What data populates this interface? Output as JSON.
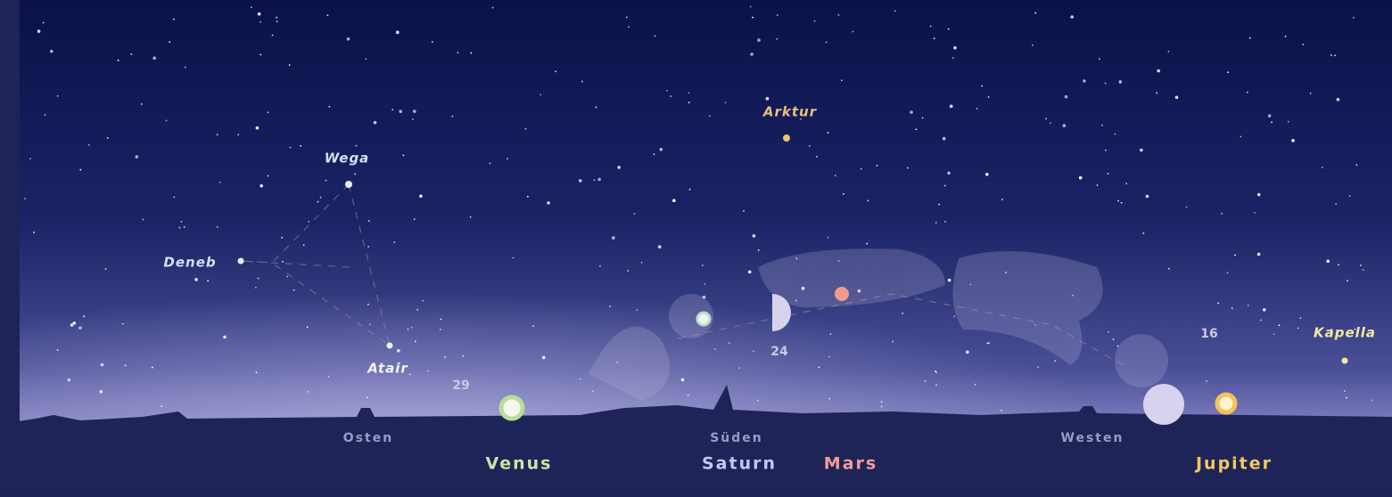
{
  "stars": {
    "arktur": "Arktur",
    "wega": "Wega",
    "deneb": "Deneb",
    "atair": "Atair",
    "kapella": "Kapella"
  },
  "moon_dates": [
    29,
    24,
    16
  ],
  "directions": [
    "Osten",
    "Süden",
    "Westen"
  ],
  "planets": [
    "Venus",
    "Saturn",
    "Mars",
    "Jupiter"
  ]
}
